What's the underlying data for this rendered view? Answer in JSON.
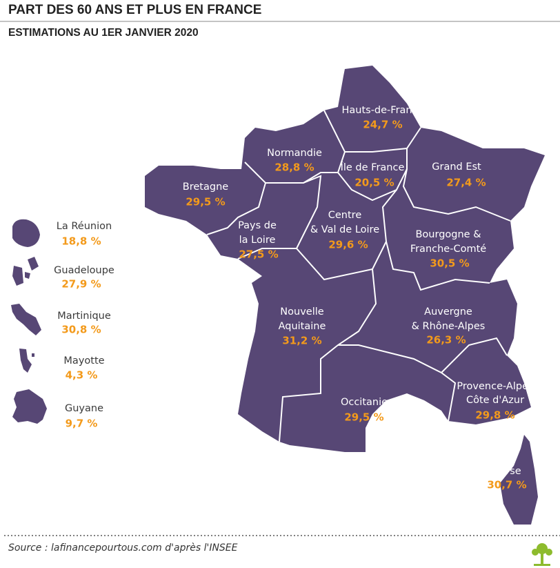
{
  "header": {
    "title": "PART DES 60 ANS ET PLUS EN FRANCE",
    "subtitle": "ESTIMATIONS AU 1ER JANVIER 2020"
  },
  "regions": [
    {
      "name": [
        "Hauts-de-France"
      ],
      "value": "24,7 %"
    },
    {
      "name": [
        "Normandie"
      ],
      "value": "28,8 %"
    },
    {
      "name": [
        "Île de France"
      ],
      "value": "20,5 %"
    },
    {
      "name": [
        "Grand Est"
      ],
      "value": "27,4 %"
    },
    {
      "name": [
        "Bretagne"
      ],
      "value": "29,5 %"
    },
    {
      "name": [
        "Pays de",
        "la Loire"
      ],
      "value": "27,5 %"
    },
    {
      "name": [
        "Centre",
        "& Val de Loire"
      ],
      "value": "29,6 %"
    },
    {
      "name": [
        "Bourgogne &",
        "Franche-Comté"
      ],
      "value": "30,5 %"
    },
    {
      "name": [
        "Nouvelle",
        "Aquitaine"
      ],
      "value": "31,2 %"
    },
    {
      "name": [
        "Auvergne",
        "& Rhône-Alpes"
      ],
      "value": "26,3 %"
    },
    {
      "name": [
        "Occitanie"
      ],
      "value": "29,5 %"
    },
    {
      "name": [
        "Provence-Alpes",
        "Côte d'Azur"
      ],
      "value": "29,8 %"
    },
    {
      "name": [
        "Corse"
      ],
      "value": "30,7 %"
    }
  ],
  "overseas": [
    {
      "name": "La Réunion",
      "value": "18,8 %"
    },
    {
      "name": "Guadeloupe",
      "value": "27,9 %"
    },
    {
      "name": "Martinique",
      "value": "30,8 %"
    },
    {
      "name": "Mayotte",
      "value": "4,3 %"
    },
    {
      "name": "Guyane",
      "value": "9,7 %"
    }
  ],
  "footer": {
    "source": "Source : lafinancepourtous.com d'après l'INSEE"
  }
}
